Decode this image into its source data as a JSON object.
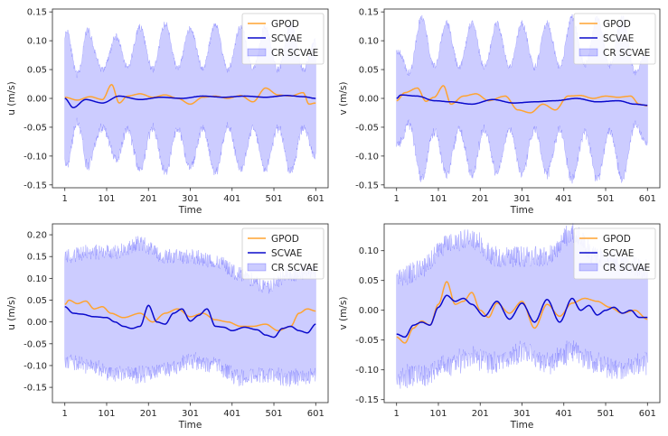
{
  "chart_data": [
    {
      "type": "line",
      "panel": "top-left",
      "xlabel": "Time",
      "ylabel": "u (m/s)",
      "xticks": [
        "1",
        "101",
        "201",
        "301",
        "401",
        "501",
        "601"
      ],
      "yticks": [
        "-0.15",
        "-0.10",
        "-0.05",
        "0.00",
        "0.05",
        "0.10",
        "0.15"
      ],
      "xlim": [
        1,
        601
      ],
      "ylim": [
        -0.155,
        0.155
      ],
      "legend_position": "top-right",
      "band_style": "oscillating",
      "series": [
        {
          "name": "GPOD",
          "color": "#ffa330",
          "x": [
            1,
            31,
            61,
            91,
            113,
            131,
            151,
            181,
            211,
            241,
            271,
            301,
            331,
            361,
            391,
            421,
            451,
            481,
            511,
            541,
            571,
            585,
            601
          ],
          "values": [
            0.002,
            -0.003,
            0.003,
            -0.002,
            0.024,
            -0.008,
            0.004,
            0.008,
            0.002,
            0.006,
            0.0,
            -0.01,
            0.002,
            0.004,
            0.0,
            0.005,
            -0.006,
            0.018,
            0.006,
            0.004,
            0.01,
            -0.01,
            -0.008
          ]
        },
        {
          "name": "SCVAE",
          "color": "#0a0acc",
          "x": [
            1,
            21,
            51,
            91,
            131,
            181,
            231,
            281,
            331,
            381,
            431,
            481,
            531,
            571,
            601
          ],
          "values": [
            0.0,
            -0.016,
            -0.002,
            -0.008,
            0.004,
            -0.002,
            0.002,
            0.0,
            0.004,
            0.002,
            0.004,
            0.002,
            0.005,
            0.003,
            0.0
          ]
        },
        {
          "name": "CR SCVAE",
          "color": "#0000ff",
          "type": "band",
          "center_x": [
            1,
            61,
            121,
            181,
            241,
            301,
            361,
            421,
            481,
            541,
            601
          ],
          "center": [
            0.0,
            0.0,
            0.0,
            0.0,
            0.0,
            0.0,
            0.0,
            0.0,
            0.0,
            0.0,
            0.0
          ],
          "half_width_x": [
            1,
            10,
            30,
            50,
            70,
            90,
            110,
            150,
            200,
            250,
            300,
            350,
            400,
            450,
            500,
            550,
            601
          ],
          "half_width": [
            0.11,
            0.13,
            0.1,
            0.13,
            0.1,
            0.12,
            0.1,
            0.13,
            0.12,
            0.13,
            0.12,
            0.13,
            0.12,
            0.13,
            0.12,
            0.13,
            0.1
          ]
        }
      ]
    },
    {
      "type": "line",
      "panel": "top-right",
      "xlabel": "Time",
      "ylabel": "v (m/s)",
      "xticks": [
        "1",
        "101",
        "201",
        "301",
        "401",
        "501",
        "601"
      ],
      "yticks": [
        "-0.15",
        "-0.10",
        "-0.05",
        "0.00",
        "0.05",
        "0.10",
        "0.15"
      ],
      "xlim": [
        1,
        601
      ],
      "ylim": [
        -0.155,
        0.155
      ],
      "legend_position": "top-right",
      "band_style": "oscillating",
      "series": [
        {
          "name": "GPOD",
          "color": "#ffa330",
          "x": [
            1,
            21,
            51,
            71,
            91,
            113,
            131,
            161,
            191,
            221,
            261,
            291,
            321,
            351,
            381,
            411,
            441,
            471,
            501,
            531,
            561,
            581,
            601
          ],
          "values": [
            -0.004,
            0.01,
            0.018,
            -0.005,
            0.002,
            0.022,
            -0.01,
            0.004,
            0.008,
            -0.004,
            0.004,
            -0.02,
            -0.025,
            -0.01,
            -0.02,
            0.004,
            0.005,
            0.0,
            0.004,
            0.002,
            0.004,
            -0.01,
            -0.013
          ]
        },
        {
          "name": "SCVAE",
          "color": "#0a0acc",
          "x": [
            1,
            11,
            51,
            91,
            131,
            181,
            231,
            281,
            331,
            381,
            431,
            481,
            531,
            571,
            601
          ],
          "values": [
            0.0,
            0.006,
            0.004,
            -0.004,
            -0.006,
            -0.01,
            -0.002,
            -0.008,
            -0.006,
            -0.004,
            0.0,
            -0.006,
            -0.004,
            -0.01,
            -0.012
          ]
        },
        {
          "name": "CR SCVAE",
          "color": "#0000ff",
          "type": "band",
          "center_x": [
            1,
            61,
            121,
            181,
            241,
            301,
            361,
            421,
            481,
            541,
            601
          ],
          "center": [
            0.0,
            0.0,
            0.0,
            0.0,
            0.0,
            0.0,
            0.0,
            0.0,
            0.0,
            0.0,
            0.0
          ],
          "half_width_x": [
            1,
            20,
            60,
            120,
            180,
            240,
            300,
            360,
            420,
            480,
            540,
            601
          ],
          "half_width": [
            0.08,
            0.1,
            0.14,
            0.13,
            0.13,
            0.13,
            0.13,
            0.13,
            0.14,
            0.14,
            0.14,
            0.08
          ]
        }
      ]
    },
    {
      "type": "line",
      "panel": "bottom-left",
      "xlabel": "Time",
      "ylabel": "u (m/s)",
      "xticks": [
        "1",
        "101",
        "201",
        "301",
        "401",
        "501",
        "601"
      ],
      "yticks": [
        "-0.15",
        "-0.10",
        "-0.05",
        "0.00",
        "0.05",
        "0.10",
        "0.15",
        "0.20"
      ],
      "xlim": [
        1,
        601
      ],
      "ylim": [
        -0.185,
        0.225
      ],
      "legend_position": "top-right",
      "band_style": "noisy",
      "series": [
        {
          "name": "GPOD",
          "color": "#ffa330",
          "x": [
            1,
            11,
            31,
            51,
            71,
            91,
            111,
            141,
            181,
            211,
            241,
            271,
            301,
            331,
            361,
            391,
            421,
            451,
            481,
            511,
            541,
            561,
            581,
            601
          ],
          "values": [
            0.04,
            0.05,
            0.042,
            0.048,
            0.03,
            0.035,
            0.02,
            0.01,
            0.02,
            0.0,
            0.02,
            0.03,
            0.012,
            0.02,
            0.005,
            0.0,
            -0.01,
            -0.01,
            -0.005,
            -0.02,
            -0.01,
            0.02,
            0.03,
            0.025
          ]
        },
        {
          "name": "SCVAE",
          "color": "#0a0acc",
          "x": [
            1,
            21,
            41,
            71,
            101,
            121,
            141,
            161,
            181,
            201,
            221,
            241,
            261,
            281,
            301,
            321,
            341,
            361,
            381,
            401,
            431,
            461,
            481,
            501,
            521,
            541,
            561,
            581,
            601
          ],
          "values": [
            0.035,
            0.02,
            0.018,
            0.012,
            0.01,
            0.0,
            -0.01,
            -0.015,
            -0.01,
            0.038,
            0.0,
            -0.005,
            0.02,
            0.03,
            0.002,
            0.015,
            0.03,
            -0.01,
            -0.012,
            -0.02,
            -0.012,
            -0.018,
            -0.03,
            -0.035,
            -0.015,
            -0.01,
            -0.02,
            -0.025,
            -0.005
          ]
        },
        {
          "name": "CR SCVAE",
          "color": "#0000ff",
          "type": "band",
          "center_x": [
            1,
            61,
            121,
            181,
            241,
            301,
            361,
            421,
            481,
            541,
            601
          ],
          "center": [
            0.03,
            0.03,
            0.02,
            0.03,
            0.02,
            0.03,
            0.02,
            -0.01,
            -0.02,
            -0.01,
            0.0
          ],
          "half_width_x": [
            1,
            60,
            120,
            180,
            240,
            300,
            360,
            420,
            480,
            540,
            601
          ],
          "half_width": [
            0.12,
            0.13,
            0.14,
            0.15,
            0.13,
            0.12,
            0.12,
            0.12,
            0.1,
            0.12,
            0.12
          ]
        }
      ]
    },
    {
      "type": "line",
      "panel": "bottom-right",
      "xlabel": "Time",
      "ylabel": "v (m/s)",
      "xticks": [
        "1",
        "101",
        "201",
        "301",
        "401",
        "501",
        "601"
      ],
      "yticks": [
        "-0.15",
        "-0.10",
        "-0.05",
        "0.00",
        "0.05",
        "0.10"
      ],
      "xlim": [
        1,
        601
      ],
      "ylim": [
        -0.155,
        0.145
      ],
      "legend_position": "top-right",
      "band_style": "noisy",
      "series": [
        {
          "name": "GPOD",
          "color": "#ffa330",
          "x": [
            1,
            21,
            41,
            61,
            81,
            101,
            121,
            141,
            161,
            181,
            201,
            221,
            241,
            271,
            301,
            331,
            361,
            391,
            421,
            451,
            481,
            511,
            541,
            571,
            601
          ],
          "values": [
            -0.045,
            -0.055,
            -0.03,
            -0.018,
            -0.025,
            0.01,
            0.048,
            0.01,
            0.015,
            0.03,
            0.0,
            -0.012,
            0.012,
            -0.005,
            0.015,
            -0.03,
            0.01,
            -0.01,
            0.012,
            0.02,
            0.015,
            0.005,
            -0.005,
            0.0,
            -0.015
          ]
        },
        {
          "name": "SCVAE",
          "color": "#0a0acc",
          "x": [
            1,
            21,
            41,
            61,
            81,
            101,
            121,
            141,
            161,
            181,
            211,
            241,
            271,
            301,
            331,
            361,
            391,
            421,
            441,
            461,
            481,
            501,
            521,
            541,
            561,
            581,
            601
          ],
          "values": [
            -0.04,
            -0.045,
            -0.025,
            -0.02,
            -0.025,
            0.005,
            0.025,
            0.015,
            0.02,
            0.01,
            -0.01,
            0.015,
            -0.015,
            0.012,
            -0.02,
            0.018,
            -0.02,
            0.02,
            0.0,
            0.008,
            -0.008,
            0.0,
            0.005,
            -0.005,
            0.0,
            -0.012,
            -0.012
          ]
        },
        {
          "name": "CR SCVAE",
          "color": "#0000ff",
          "type": "band",
          "center_x": [
            1,
            61,
            121,
            181,
            241,
            301,
            361,
            421,
            481,
            541,
            601
          ],
          "center": [
            -0.03,
            -0.02,
            0.01,
            0.02,
            0.0,
            0.01,
            0.0,
            0.03,
            0.0,
            -0.01,
            -0.01
          ],
          "half_width_x": [
            1,
            60,
            120,
            180,
            240,
            300,
            360,
            420,
            480,
            540,
            601
          ],
          "half_width": [
            0.08,
            0.09,
            0.1,
            0.1,
            0.09,
            0.08,
            0.09,
            0.1,
            0.09,
            0.09,
            0.08
          ]
        }
      ]
    }
  ]
}
